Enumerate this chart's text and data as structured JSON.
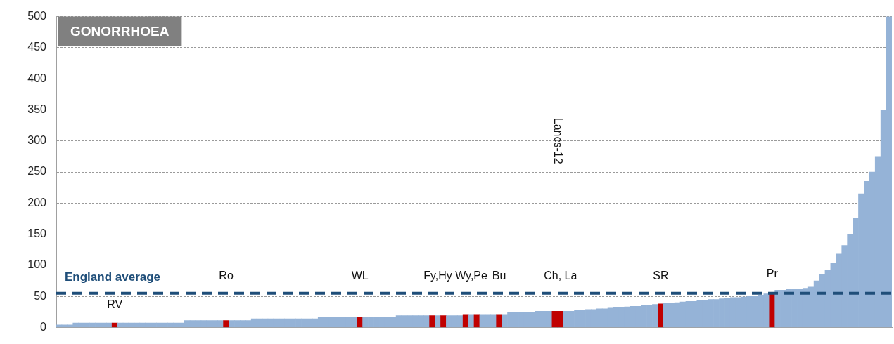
{
  "chart_data": {
    "type": "bar",
    "title": "GONORRHOEA",
    "categories": [
      null,
      null,
      null,
      null,
      null,
      null,
      null,
      null,
      null,
      null,
      "RV",
      null,
      null,
      null,
      null,
      null,
      null,
      null,
      null,
      null,
      null,
      null,
      null,
      null,
      null,
      null,
      null,
      null,
      null,
      null,
      "Ro",
      null,
      null,
      null,
      null,
      null,
      null,
      null,
      null,
      null,
      null,
      null,
      null,
      null,
      null,
      null,
      null,
      null,
      null,
      null,
      null,
      null,
      null,
      null,
      "WL",
      null,
      null,
      null,
      null,
      null,
      null,
      null,
      null,
      null,
      null,
      null,
      null,
      null,
      "Fy,Hy",
      null,
      null,
      null,
      null,
      null,
      "Wy,Pe",
      null,
      null,
      null,
      null,
      "Bu",
      null,
      null,
      null,
      null,
      null,
      null,
      null,
      null,
      null,
      null,
      "Ch, La",
      null,
      null,
      null,
      null,
      null,
      null,
      null,
      null,
      null,
      null,
      null,
      null,
      null,
      null,
      null,
      null,
      null,
      "SR",
      null,
      null,
      null,
      null,
      null,
      null,
      null,
      null,
      null,
      null,
      null,
      null,
      null,
      null,
      null,
      null,
      null,
      null,
      null,
      "Pr",
      null,
      null,
      null,
      null,
      null,
      null,
      null,
      null,
      null,
      null,
      null,
      null,
      null,
      null,
      null,
      null,
      null,
      null,
      null,
      null,
      null
    ],
    "values": [
      4,
      4,
      4,
      7,
      7,
      7,
      7,
      7,
      7,
      7,
      7,
      7,
      7,
      7,
      7,
      7,
      7,
      7,
      7,
      7,
      7,
      7,
      7,
      11,
      11,
      11,
      11,
      11,
      11,
      11,
      11,
      11,
      11,
      11,
      11,
      14,
      14,
      14,
      14,
      14,
      14,
      14,
      14,
      14,
      14,
      14,
      14,
      17,
      17,
      17,
      17,
      17,
      17,
      17,
      17,
      17,
      17,
      17,
      17,
      17,
      17,
      19,
      19,
      19,
      19,
      19,
      19,
      19,
      19,
      19,
      19,
      19,
      19,
      21,
      21,
      21,
      21,
      21,
      21,
      21,
      21,
      24,
      24,
      24,
      24,
      24,
      26,
      26,
      26,
      26,
      26,
      26,
      26,
      28,
      28,
      29,
      29,
      30,
      30,
      31,
      32,
      32,
      33,
      34,
      34,
      35,
      36,
      37,
      38,
      39,
      39,
      40,
      41,
      42,
      42,
      43,
      44,
      45,
      45,
      46,
      47,
      48,
      48,
      49,
      50,
      51,
      52,
      54,
      56,
      60,
      60,
      61,
      62,
      62,
      63,
      65,
      75,
      85,
      92,
      104,
      118,
      132,
      150,
      175,
      215,
      235,
      250,
      275,
      350,
      500
    ],
    "colors": [
      "#95b3d7",
      "#95b3d7",
      "#95b3d7",
      "#95b3d7",
      "#95b3d7",
      "#95b3d7",
      "#95b3d7",
      "#95b3d7",
      "#95b3d7",
      "#95b3d7",
      "#c00000",
      "#95b3d7",
      "#95b3d7",
      "#95b3d7",
      "#95b3d7",
      "#95b3d7",
      "#95b3d7",
      "#95b3d7",
      "#95b3d7",
      "#95b3d7",
      "#95b3d7",
      "#95b3d7",
      "#95b3d7",
      "#95b3d7",
      "#95b3d7",
      "#95b3d7",
      "#95b3d7",
      "#95b3d7",
      "#95b3d7",
      "#95b3d7",
      "#c00000",
      "#95b3d7",
      "#95b3d7",
      "#95b3d7",
      "#95b3d7",
      "#95b3d7",
      "#95b3d7",
      "#95b3d7",
      "#95b3d7",
      "#95b3d7",
      "#95b3d7",
      "#95b3d7",
      "#95b3d7",
      "#95b3d7",
      "#95b3d7",
      "#95b3d7",
      "#95b3d7",
      "#95b3d7",
      "#95b3d7",
      "#95b3d7",
      "#95b3d7",
      "#95b3d7",
      "#95b3d7",
      "#95b3d7",
      "#c00000",
      "#95b3d7",
      "#95b3d7",
      "#95b3d7",
      "#95b3d7",
      "#95b3d7",
      "#95b3d7",
      "#95b3d7",
      "#95b3d7",
      "#95b3d7",
      "#95b3d7",
      "#95b3d7",
      "#95b3d7",
      "#c00000",
      "#95b3d7",
      "#c00000",
      "#95b3d7",
      "#95b3d7",
      "#95b3d7",
      "#c00000",
      "#95b3d7",
      "#c00000",
      "#95b3d7",
      "#95b3d7",
      "#95b3d7",
      "#c00000",
      "#95b3d7",
      "#95b3d7",
      "#95b3d7",
      "#95b3d7",
      "#95b3d7",
      "#95b3d7",
      "#95b3d7",
      "#95b3d7",
      "#95b3d7",
      "#c00000",
      "#c00000",
      "#95b3d7",
      "#95b3d7",
      "#95b3d7",
      "#95b3d7",
      "#95b3d7",
      "#95b3d7",
      "#95b3d7",
      "#95b3d7",
      "#95b3d7",
      "#95b3d7",
      "#95b3d7",
      "#95b3d7",
      "#95b3d7",
      "#95b3d7",
      "#95b3d7",
      "#95b3d7",
      "#95b3d7",
      "#c00000",
      "#95b3d7",
      "#95b3d7",
      "#95b3d7",
      "#95b3d7",
      "#95b3d7",
      "#95b3d7",
      "#95b3d7",
      "#95b3d7",
      "#95b3d7",
      "#95b3d7",
      "#95b3d7",
      "#95b3d7",
      "#95b3d7",
      "#95b3d7",
      "#95b3d7",
      "#95b3d7",
      "#95b3d7",
      "#95b3d7",
      "#95b3d7",
      "#c00000",
      "#95b3d7",
      "#95b3d7",
      "#95b3d7",
      "#95b3d7",
      "#95b3d7",
      "#95b3d7",
      "#95b3d7",
      "#95b3d7",
      "#95b3d7",
      "#95b3d7",
      "#95b3d7",
      "#95b3d7",
      "#95b3d7",
      "#95b3d7",
      "#95b3d7",
      "#95b3d7",
      "#95b3d7",
      "#95b3d7",
      "#95b3d7",
      "#95b3d7",
      "#95b3d7"
    ],
    "ylim": [
      0,
      500
    ],
    "yticks": [
      0,
      50,
      100,
      150,
      200,
      250,
      300,
      350,
      400,
      450,
      500
    ],
    "tick_labels": "y",
    "grid": "y",
    "ref_lines": [
      {
        "axis": "y",
        "value": 55,
        "label": "England average",
        "color": "#1f4e79",
        "line_style": "dashed"
      }
    ],
    "annotations": [
      "Lancs-12"
    ]
  }
}
